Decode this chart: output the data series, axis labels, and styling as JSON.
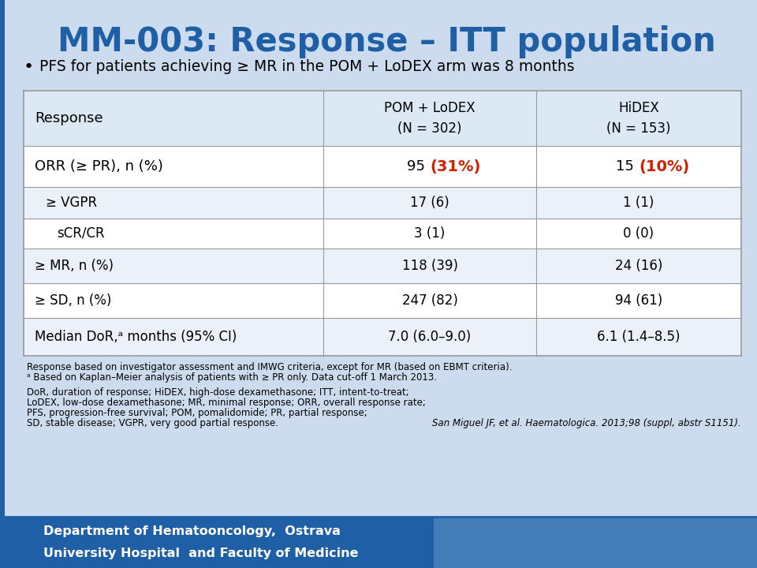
{
  "title": "MM-003: Response – ITT population",
  "title_color": "#1f5fa6",
  "bullet": "PFS for patients achieving ≥ MR in the POM + LoDEX arm was 8 months",
  "bg_color": "#ccdcee",
  "table_header_col1": "Response",
  "table_header_col2": "POM + LoDEX\n(N = 302)",
  "table_header_col3": "HiDEX\n(N = 153)",
  "rows": [
    {
      "label": "ORR (≥ PR), n (%)",
      "col2_prefix": "95 ",
      "col2_highlight": "(31%)",
      "col3_prefix": "15 ",
      "col3_highlight": "(10%)",
      "highlight": true,
      "indent": 0
    },
    {
      "label": "≥ VGPR",
      "col2": "17 (6)",
      "col3": "1 (1)",
      "highlight": false,
      "indent": 1
    },
    {
      "label": "sCR/CR",
      "col2": "3 (1)",
      "col3": "0 (0)",
      "highlight": false,
      "indent": 2
    },
    {
      "label": "≥ MR, n (%)",
      "col2": "118 (39)",
      "col3": "24 (16)",
      "highlight": false,
      "indent": 0
    },
    {
      "label": "≥ SD, n (%)",
      "col2": "247 (82)",
      "col3": "94 (61)",
      "highlight": false,
      "indent": 0
    },
    {
      "label": "Median DoR,ᵃ months (95% CI)",
      "col2": "7.0 (6.0–9.0)",
      "col3": "6.1 (1.4–8.5)",
      "highlight": false,
      "indent": 0
    }
  ],
  "highlight_color": "#cc2200",
  "footnote1": "Response based on investigator assessment and IMWG criteria, except for MR (based on EBMT criteria).",
  "footnote2": "ᵃ Based on Kaplan–Meier analysis of patients with ≥ PR only. Data cut-off 1 March 2013.",
  "footnote3": "DoR, duration of response; HiDEX, high-dose dexamethasone; ITT, intent-to-treat;",
  "footnote4": "LoDEX, low-dose dexamethasone; MR, minimal response; ORR, overall response rate;",
  "footnote5": "PFS, progression-free survival; POM, pomalidomide; PR, partial response;",
  "footnote6": "SD, stable disease; VGPR, very good partial response.",
  "citation": "San Miguel JF, et al. Haematologica. 2013;98 (suppl, abstr S1151).",
  "footer_text1": "Department of Hematooncology,  Ostrava",
  "footer_text2": "University Hospital  and Faculty of Medicine",
  "footer_bg": "#1f5fa6",
  "table_border_color": "#999999",
  "table_bg": "#ffffff",
  "header_row_bg": "#dce9f5",
  "row_bg_odd": "#ffffff",
  "row_bg_even": "#eaf1f8",
  "left_accent_color": "#2060a8",
  "left_bar_width": 6
}
